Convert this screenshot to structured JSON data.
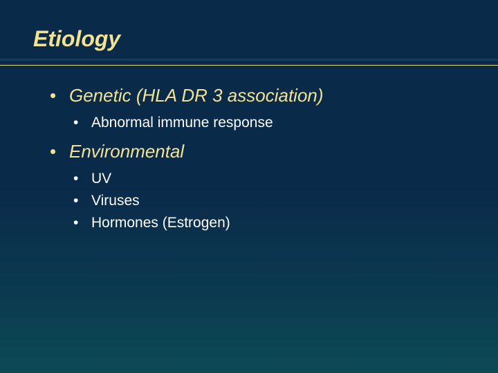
{
  "slide": {
    "title": "Etiology",
    "title_color": "#f2e394",
    "title_fontsize": 32,
    "divider_thick_color": "#153a5e",
    "divider_thin_color": "#e8d77a",
    "bg_gradient_top": "#0a2a4a",
    "bg_gradient_bottom": "#0d4a55",
    "level1_color": "#f2e394",
    "level1_fontsize": 26,
    "level2_color": "#ffffff",
    "level2_fontsize": 21,
    "bullets": [
      {
        "text": "Genetic (HLA DR 3 association)",
        "children": [
          {
            "text": "Abnormal immune response"
          }
        ]
      },
      {
        "text": "Environmental",
        "children": [
          {
            "text": "UV"
          },
          {
            "text": "Viruses"
          },
          {
            "text": "Hormones (Estrogen)"
          }
        ]
      }
    ]
  }
}
